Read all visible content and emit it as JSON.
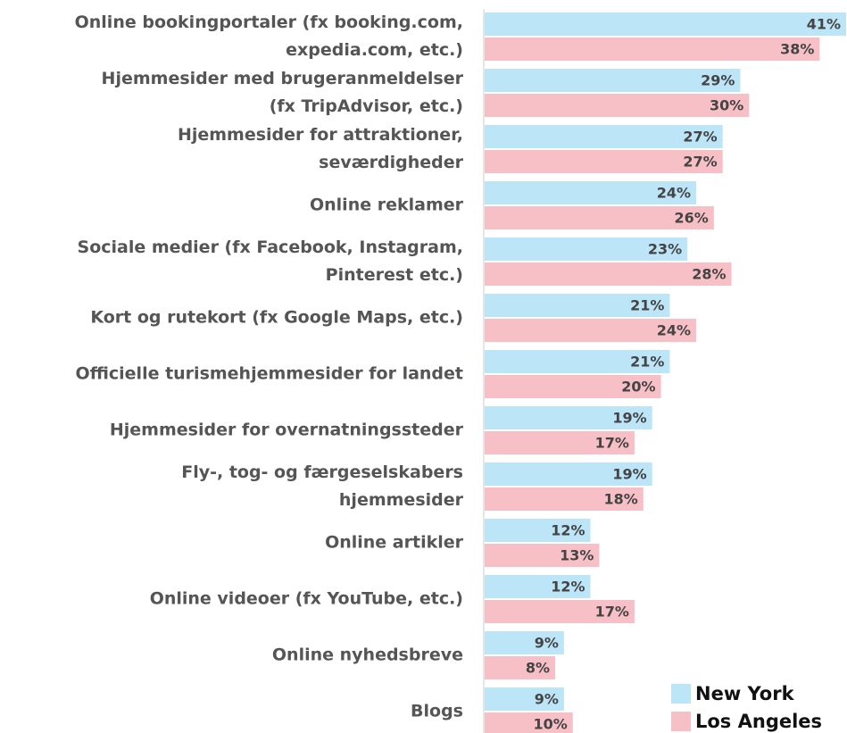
{
  "chart_data": {
    "type": "bar",
    "orientation": "horizontal",
    "categories": [
      [
        "Online bookingportaler (fx booking.com,",
        "expedia.com, etc.)"
      ],
      [
        "Hjemmesider med brugeranmeldelser",
        "(fx TripAdvisor, etc.)"
      ],
      [
        "Hjemmesider for attraktioner,",
        "seværdigheder"
      ],
      [
        "Online reklamer"
      ],
      [
        "Sociale medier (fx Facebook, Instagram,",
        "Pinterest etc.)"
      ],
      [
        "Kort og rutekort (fx Google Maps, etc.)"
      ],
      [
        "Officielle turismehjemmesider for landet"
      ],
      [
        "Hjemmesider for overnatningssteder"
      ],
      [
        "Fly-, tog- og færgeselskabers",
        "hjemmesider"
      ],
      [
        "Online artikler"
      ],
      [
        "Online videoer (fx YouTube, etc.)"
      ],
      [
        "Online nyhedsbreve"
      ],
      [
        "Blogs"
      ]
    ],
    "series": [
      {
        "name": "New York",
        "color": "#bde5f8",
        "values": [
          41,
          29,
          27,
          24,
          23,
          21,
          21,
          19,
          19,
          12,
          12,
          9,
          9
        ],
        "value_labels": [
          "41%",
          "29%",
          "27%",
          "24%",
          "23%",
          "21%",
          "21%",
          "19%",
          "19%",
          "12%",
          "12%",
          "9%",
          "9%"
        ]
      },
      {
        "name": "Los Angeles",
        "color": "#f7c0c7",
        "values": [
          38,
          30,
          27,
          26,
          28,
          24,
          20,
          17,
          18,
          13,
          17,
          8,
          10
        ],
        "value_labels": [
          "38%",
          "30%",
          "27%",
          "26%",
          "28%",
          "24%",
          "20%",
          "17%",
          "18%",
          "13%",
          "17%",
          "8%",
          "10%"
        ]
      }
    ],
    "legend": "lower right"
  }
}
